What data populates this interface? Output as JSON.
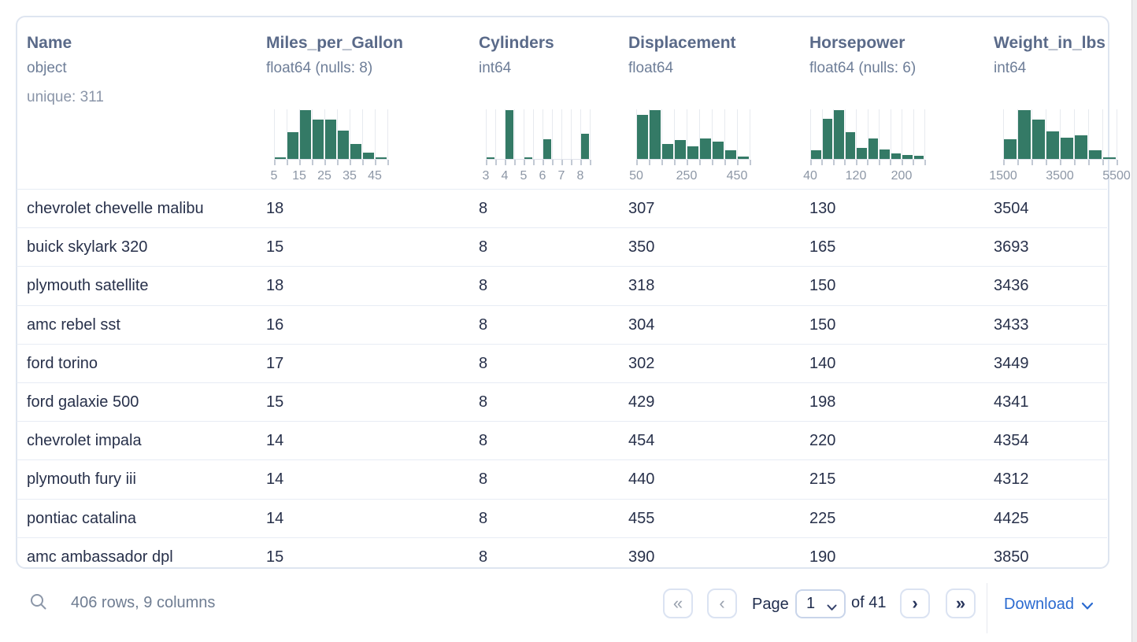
{
  "table": {
    "columns": [
      {
        "name": "Name",
        "dtype": "object",
        "meta": "unique: 311",
        "chart": null
      },
      {
        "name": "Miles_per_Gallon",
        "dtype": "float64 (nulls: 8)",
        "meta": "",
        "chart": 0
      },
      {
        "name": "Cylinders",
        "dtype": "int64",
        "meta": "",
        "chart": 1
      },
      {
        "name": "Displacement",
        "dtype": "float64",
        "meta": "",
        "chart": 2
      },
      {
        "name": "Horsepower",
        "dtype": "float64 (nulls: 6)",
        "meta": "",
        "chart": 3
      },
      {
        "name": "Weight_in_lbs",
        "dtype": "int64",
        "meta": "",
        "chart": 4
      }
    ],
    "rows": [
      [
        "chevrolet chevelle malibu",
        "18",
        "8",
        "307",
        "130",
        "3504"
      ],
      [
        "buick skylark 320",
        "15",
        "8",
        "350",
        "165",
        "3693"
      ],
      [
        "plymouth satellite",
        "18",
        "8",
        "318",
        "150",
        "3436"
      ],
      [
        "amc rebel sst",
        "16",
        "8",
        "304",
        "150",
        "3433"
      ],
      [
        "ford torino",
        "17",
        "8",
        "302",
        "140",
        "3449"
      ],
      [
        "ford galaxie 500",
        "15",
        "8",
        "429",
        "198",
        "4341"
      ],
      [
        "chevrolet impala",
        "14",
        "8",
        "454",
        "220",
        "4354"
      ],
      [
        "plymouth fury iii",
        "14",
        "8",
        "440",
        "215",
        "4312"
      ],
      [
        "pontiac catalina",
        "14",
        "8",
        "455",
        "225",
        "4425"
      ],
      [
        "amc ambassador dpl",
        "15",
        "8",
        "390",
        "190",
        "3850"
      ]
    ]
  },
  "chart_data": [
    {
      "type": "bar",
      "title": "Miles_per_Gallon histogram",
      "bin_start": 5,
      "bin_width": 5,
      "x_range": [
        5,
        50
      ],
      "tick_labels": [
        {
          "text": "5",
          "line": 0
        },
        {
          "text": "15",
          "line": 2
        },
        {
          "text": "25",
          "line": 4
        },
        {
          "text": "35",
          "line": 6
        },
        {
          "text": "45",
          "line": 8
        }
      ],
      "relative_heights": [
        0.03,
        0.55,
        1.0,
        0.8,
        0.8,
        0.58,
        0.31,
        0.13,
        0.03
      ],
      "bar_color": "#347a66",
      "grid": true
    },
    {
      "type": "bar",
      "title": "Cylinders histogram",
      "bin_start": 3,
      "bin_width": 0.5,
      "x_range": [
        3,
        8.5
      ],
      "tick_labels": [
        {
          "text": "3",
          "line": 0
        },
        {
          "text": "4",
          "line": 2
        },
        {
          "text": "5",
          "line": 4
        },
        {
          "text": "6",
          "line": 6
        },
        {
          "text": "7",
          "line": 8
        },
        {
          "text": "8",
          "line": 10
        }
      ],
      "relative_heights": [
        0.04,
        0,
        1.0,
        0,
        0.03,
        0,
        0.41,
        0,
        0,
        0,
        0.52
      ],
      "bar_color": "#347a66",
      "grid": true
    },
    {
      "type": "bar",
      "title": "Displacement histogram",
      "bin_start": 50,
      "bin_width": 50,
      "x_range": [
        50,
        500
      ],
      "tick_labels": [
        {
          "text": "50",
          "line": 0
        },
        {
          "text": "250",
          "line": 4
        },
        {
          "text": "450",
          "line": 8
        }
      ],
      "relative_heights": [
        0.9,
        1.0,
        0.3,
        0.38,
        0.25,
        0.42,
        0.35,
        0.17,
        0.05
      ],
      "bar_color": "#347a66",
      "grid": true
    },
    {
      "type": "bar",
      "title": "Horsepower histogram",
      "bin_start": 40,
      "bin_width": 20,
      "x_range": [
        40,
        240
      ],
      "tick_labels": [
        {
          "text": "40",
          "line": 0
        },
        {
          "text": "120",
          "line": 4
        },
        {
          "text": "200",
          "line": 8
        }
      ],
      "relative_heights": [
        0.17,
        0.82,
        1.0,
        0.55,
        0.22,
        0.42,
        0.2,
        0.12,
        0.08,
        0.07
      ],
      "bar_color": "#347a66",
      "grid": true
    },
    {
      "type": "bar",
      "title": "Weight_in_lbs histogram",
      "bin_start": 1500,
      "bin_width": 500,
      "x_range": [
        1500,
        5500
      ],
      "tick_labels": [
        {
          "text": "1500",
          "line": 0
        },
        {
          "text": "3500",
          "line": 4
        },
        {
          "text": "5500",
          "line": 8
        }
      ],
      "relative_heights": [
        0.4,
        1.0,
        0.8,
        0.57,
        0.43,
        0.48,
        0.17,
        0.03
      ],
      "bar_color": "#347a66",
      "grid": true
    }
  ],
  "footer": {
    "summary": "406 rows, 9 columns",
    "page_label": "Page",
    "page_value": "1",
    "of_label": "of 41",
    "download_label": "Download",
    "first_icon": "«",
    "prev_icon": "‹",
    "next_icon": "›",
    "last_icon": "»"
  }
}
